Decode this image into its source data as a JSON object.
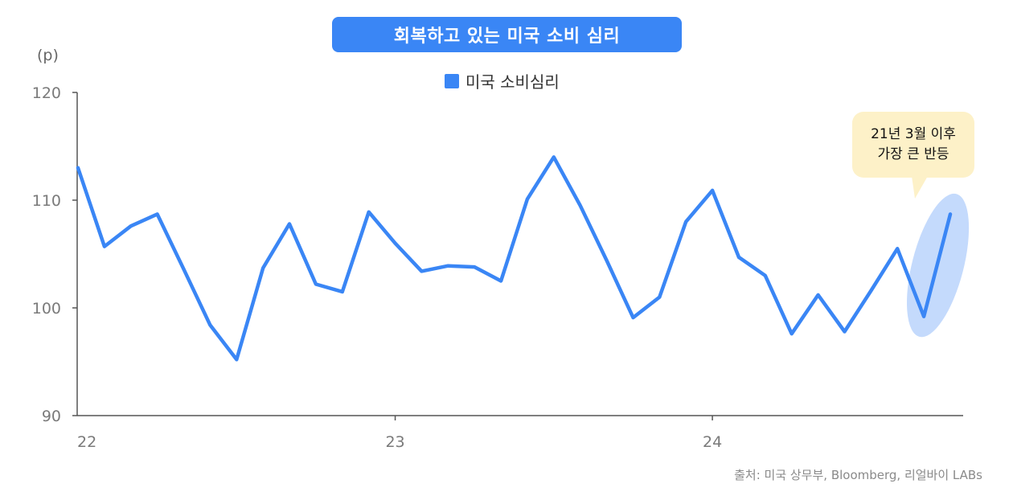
{
  "header": {
    "title": "회복하고 있는 미국 소비 심리"
  },
  "unit_label": "(p)",
  "source": "출처: 미국 상무부, Bloomberg, 리얼바이 LABs",
  "annotation": {
    "line1": "21년 3월 이후",
    "line2": "가장 큰 반등"
  },
  "colors": {
    "series": "#3a86f5",
    "highlight": "#c4dafc",
    "callout": "#fdf1c8",
    "title_bg": "#3a86f5"
  },
  "chart_data": {
    "type": "line",
    "title": "회복하고 있는 미국 소비 심리",
    "ylabel": "(p)",
    "ylim": [
      90,
      120
    ],
    "yticks": [
      90,
      100,
      110,
      120
    ],
    "xtick_labels": [
      "22",
      "23",
      "24"
    ],
    "xtick_index": [
      0,
      12,
      24
    ],
    "legend": "top-center",
    "series": [
      {
        "name": "미국 소비심리",
        "x": [
          "2022-01",
          "2022-02",
          "2022-03",
          "2022-04",
          "2022-05",
          "2022-06",
          "2022-07",
          "2022-08",
          "2022-09",
          "2022-10",
          "2022-11",
          "2022-12",
          "2023-01",
          "2023-02",
          "2023-03",
          "2023-04",
          "2023-05",
          "2023-06",
          "2023-07",
          "2023-08",
          "2023-09",
          "2023-10",
          "2023-11",
          "2023-12",
          "2024-01",
          "2024-02",
          "2024-03",
          "2024-04",
          "2024-05",
          "2024-06",
          "2024-07",
          "2024-08",
          "2024-09",
          "2024-10"
        ],
        "values": [
          113.0,
          105.7,
          107.6,
          108.7,
          103.6,
          98.4,
          95.2,
          103.7,
          107.8,
          102.2,
          101.5,
          108.9,
          106.0,
          103.4,
          103.9,
          103.8,
          102.5,
          110.1,
          114.0,
          109.5,
          104.4,
          99.1,
          101.0,
          108.0,
          110.9,
          104.7,
          103.0,
          97.6,
          101.2,
          97.8,
          101.6,
          105.5,
          99.2,
          108.7
        ]
      }
    ]
  }
}
